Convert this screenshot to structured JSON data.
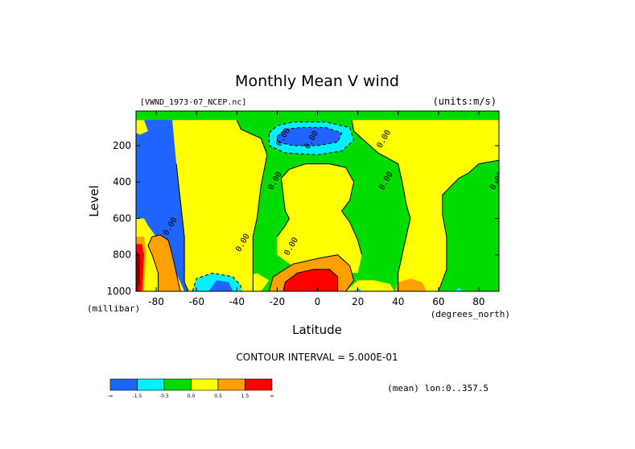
{
  "chart_data": {
    "type": "heatmap",
    "title": "Monthly Mean V wind",
    "dataset_label": "[VWND_1973-07_NCEP.nc]",
    "units_label": "(units:m/s)",
    "xlabel": "Latitude",
    "xunit": "(degrees_north)",
    "ylabel": "Level",
    "yunit": "(millibar)",
    "xlim": [
      -90,
      90
    ],
    "ylim": [
      1000,
      10
    ],
    "x_ticks": [
      "-80",
      "-60",
      "-40",
      "-20",
      "0",
      "20",
      "40",
      "60",
      "80"
    ],
    "x_tick_values": [
      -80,
      -60,
      -40,
      -20,
      0,
      20,
      40,
      60,
      80
    ],
    "y_ticks": [
      "200",
      "400",
      "600",
      "800",
      "1000"
    ],
    "y_tick_values": [
      200,
      400,
      600,
      800,
      1000
    ],
    "contour_labels": [
      "0.00",
      "0.00",
      "0.00",
      "0.00",
      "0.00",
      "0.00",
      "0.00",
      "0.00",
      "0.00"
    ],
    "contour_interval_text": "CONTOUR INTERVAL = 5.000E-01",
    "mean_text": "(mean) lon:0..357.5",
    "colorbar": {
      "colors": [
        "#1f64ff",
        "#00f0ff",
        "#00dc00",
        "#ffff00",
        "#ffa000",
        "#ff0000"
      ],
      "labels": [
        "-∞",
        "-1.5",
        "-0.5",
        "0.0",
        "0.5",
        "1.5",
        "∞"
      ]
    },
    "regions": [
      {
        "level": 0,
        "points": [
          [
            -40,
            1000
          ],
          [
            -42,
            650
          ],
          [
            -43,
            500
          ],
          [
            -40,
            350
          ],
          [
            -42,
            200
          ],
          [
            -48,
            120
          ],
          [
            -55,
            70
          ],
          [
            -60,
            60
          ],
          [
            -90,
            60
          ],
          [
            -90,
            1000
          ]
        ]
      },
      {
        "level": 3,
        "points": [
          [
            -64,
            1000
          ],
          [
            -66,
            950
          ],
          [
            -66,
            700
          ],
          [
            -68,
            500
          ],
          [
            -70,
            300
          ],
          [
            -72,
            60
          ],
          [
            -40,
            60
          ],
          [
            -38,
            110
          ],
          [
            -28,
            160
          ],
          [
            -25,
            250
          ],
          [
            -28,
            420
          ],
          [
            -30,
            600
          ],
          [
            -32,
            700
          ],
          [
            -32,
            1000
          ]
        ]
      },
      {
        "level": 3,
        "points": [
          [
            -20,
            700
          ],
          [
            -16,
            640
          ],
          [
            -14,
            600
          ],
          [
            -16,
            560
          ],
          [
            -18,
            380
          ],
          [
            -14,
            330
          ],
          [
            -6,
            300
          ],
          [
            6,
            300
          ],
          [
            14,
            320
          ],
          [
            18,
            400
          ],
          [
            16,
            500
          ],
          [
            12,
            560
          ],
          [
            16,
            620
          ],
          [
            20,
            720
          ],
          [
            22,
            800
          ],
          [
            20,
            900
          ],
          [
            -10,
            880
          ],
          [
            -20,
            800
          ]
        ]
      },
      {
        "level": 3,
        "points": [
          [
            17,
            60
          ],
          [
            18,
            120
          ],
          [
            24,
            180
          ],
          [
            30,
            240
          ],
          [
            40,
            300
          ],
          [
            42,
            400
          ],
          [
            44,
            520
          ],
          [
            46,
            600
          ],
          [
            44,
            700
          ],
          [
            40,
            900
          ],
          [
            40,
            1000
          ],
          [
            60,
            1000
          ],
          [
            64,
            880
          ],
          [
            64,
            700
          ],
          [
            62,
            580
          ],
          [
            62,
            470
          ],
          [
            70,
            380
          ],
          [
            75,
            350
          ],
          [
            80,
            300
          ],
          [
            90,
            280
          ],
          [
            90,
            60
          ]
        ]
      },
      {
        "level": 3,
        "points": [
          [
            -90,
            600
          ],
          [
            -86,
            600
          ],
          [
            -84,
            640
          ],
          [
            -80,
            700
          ],
          [
            -78,
            750
          ],
          [
            -74,
            820
          ],
          [
            -70,
            900
          ],
          [
            -66,
            1000
          ],
          [
            -90,
            1000
          ]
        ]
      },
      {
        "level": 3,
        "points": [
          [
            -36,
            1000
          ],
          [
            -38,
            950
          ],
          [
            -36,
            920
          ],
          [
            -30,
            900
          ],
          [
            -24,
            940
          ],
          [
            -28,
            1000
          ]
        ]
      },
      {
        "level": 3,
        "points": [
          [
            14,
            1000
          ],
          [
            20,
            940
          ],
          [
            28,
            940
          ],
          [
            36,
            960
          ],
          [
            38,
            1000
          ]
        ]
      },
      {
        "level": 3,
        "points": [
          [
            -90,
            60
          ],
          [
            -86,
            60
          ],
          [
            -84,
            120
          ],
          [
            -88,
            140
          ],
          [
            -90,
            130
          ]
        ]
      },
      {
        "level": 4,
        "points": [
          [
            -79,
            1000
          ],
          [
            -79,
            900
          ],
          [
            -82,
            800
          ],
          [
            -84,
            750
          ],
          [
            -82,
            700
          ],
          [
            -78,
            690
          ],
          [
            -74,
            720
          ],
          [
            -72,
            800
          ],
          [
            -70,
            900
          ],
          [
            -68,
            1000
          ]
        ]
      },
      {
        "level": 4,
        "points": [
          [
            -24,
            1000
          ],
          [
            -22,
            920
          ],
          [
            -12,
            850
          ],
          [
            0,
            820
          ],
          [
            10,
            800
          ],
          [
            16,
            860
          ],
          [
            18,
            940
          ],
          [
            14,
            1000
          ]
        ]
      },
      {
        "level": 4,
        "points": [
          [
            38,
            1000
          ],
          [
            40,
            950
          ],
          [
            46,
            930
          ],
          [
            52,
            950
          ],
          [
            54,
            1000
          ]
        ]
      },
      {
        "level": 4,
        "points": [
          [
            -90,
            700
          ],
          [
            -86,
            700
          ],
          [
            -85,
            780
          ],
          [
            -86,
            1000
          ],
          [
            -90,
            1000
          ]
        ]
      },
      {
        "level": 5,
        "points": [
          [
            -17,
            1000
          ],
          [
            -16,
            950
          ],
          [
            -10,
            900
          ],
          [
            -2,
            880
          ],
          [
            6,
            880
          ],
          [
            10,
            920
          ],
          [
            10,
            1000
          ]
        ]
      },
      {
        "level": 5,
        "points": [
          [
            -90,
            740
          ],
          [
            -87,
            740
          ],
          [
            -86,
            800
          ],
          [
            -87,
            1000
          ],
          [
            -90,
            1000
          ]
        ]
      },
      {
        "level": 6,
        "points": [
          [
            -90,
            780
          ],
          [
            -88,
            800
          ],
          [
            -88,
            960
          ],
          [
            -90,
            1000
          ]
        ]
      },
      {
        "level": 1,
        "points": [
          [
            -62,
            1000
          ],
          [
            -60,
            930
          ],
          [
            -52,
            900
          ],
          [
            -42,
            920
          ],
          [
            -38,
            970
          ],
          [
            -38,
            1000
          ]
        ]
      },
      {
        "level": 1,
        "points": [
          [
            18,
            1000
          ],
          [
            20,
            980
          ],
          [
            22,
            1000
          ]
        ]
      },
      {
        "level": 1,
        "points": [
          [
            68,
            1000
          ],
          [
            70,
            980
          ],
          [
            72,
            1000
          ]
        ]
      },
      {
        "level": 1,
        "points": [
          [
            -24,
            130
          ],
          [
            -20,
            90
          ],
          [
            -12,
            70
          ],
          [
            4,
            70
          ],
          [
            16,
            100
          ],
          [
            18,
            170
          ],
          [
            12,
            230
          ],
          [
            0,
            250
          ],
          [
            -16,
            240
          ],
          [
            -24,
            200
          ]
        ]
      },
      {
        "level": 0,
        "points": [
          [
            -20,
            150
          ],
          [
            -16,
            110
          ],
          [
            -8,
            100
          ],
          [
            4,
            100
          ],
          [
            12,
            130
          ],
          [
            10,
            180
          ],
          [
            0,
            200
          ],
          [
            -12,
            200
          ],
          [
            -20,
            180
          ]
        ]
      },
      {
        "level": 0,
        "points": [
          [
            -54,
            1000
          ],
          [
            -50,
            940
          ],
          [
            -44,
            950
          ],
          [
            -42,
            1000
          ]
        ]
      }
    ],
    "contours": [
      {
        "dashed": false,
        "points": [
          [
            -70,
            300
          ],
          [
            -68,
            500
          ],
          [
            -66,
            700
          ],
          [
            -66,
            950
          ],
          [
            -64,
            1000
          ]
        ]
      },
      {
        "dashed": false,
        "points": [
          [
            -40,
            60
          ],
          [
            -38,
            110
          ],
          [
            -28,
            160
          ],
          [
            -25,
            250
          ],
          [
            -28,
            420
          ],
          [
            -30,
            600
          ],
          [
            -32,
            700
          ],
          [
            -32,
            1000
          ]
        ]
      },
      {
        "dashed": false,
        "points": [
          [
            -20,
            700
          ],
          [
            -16,
            640
          ],
          [
            -14,
            600
          ],
          [
            -16,
            560
          ],
          [
            -18,
            380
          ],
          [
            -14,
            330
          ],
          [
            -6,
            300
          ],
          [
            6,
            300
          ],
          [
            14,
            320
          ],
          [
            18,
            400
          ],
          [
            16,
            500
          ],
          [
            12,
            560
          ],
          [
            16,
            620
          ],
          [
            20,
            720
          ],
          [
            22,
            800
          ]
        ]
      },
      {
        "dashed": false,
        "points": [
          [
            17,
            60
          ],
          [
            18,
            120
          ],
          [
            24,
            180
          ],
          [
            30,
            240
          ],
          [
            40,
            300
          ],
          [
            42,
            400
          ],
          [
            44,
            520
          ],
          [
            46,
            600
          ],
          [
            44,
            700
          ],
          [
            40,
            900
          ],
          [
            40,
            1000
          ]
        ]
      },
      {
        "dashed": false,
        "points": [
          [
            60,
            1000
          ],
          [
            64,
            880
          ],
          [
            64,
            700
          ],
          [
            62,
            580
          ],
          [
            62,
            470
          ],
          [
            70,
            380
          ],
          [
            75,
            350
          ],
          [
            80,
            300
          ],
          [
            90,
            280
          ]
        ]
      },
      {
        "dashed": false,
        "points": [
          [
            -24,
            1000
          ],
          [
            -22,
            920
          ],
          [
            -12,
            850
          ],
          [
            0,
            820
          ],
          [
            10,
            800
          ],
          [
            16,
            860
          ],
          [
            18,
            940
          ],
          [
            14,
            1000
          ]
        ]
      },
      {
        "dashed": false,
        "points": [
          [
            -17,
            1000
          ],
          [
            -16,
            950
          ],
          [
            -10,
            900
          ],
          [
            -2,
            880
          ],
          [
            6,
            880
          ],
          [
            10,
            920
          ],
          [
            10,
            1000
          ]
        ]
      },
      {
        "dashed": false,
        "points": [
          [
            -79,
            1000
          ],
          [
            -79,
            900
          ],
          [
            -82,
            800
          ],
          [
            -84,
            750
          ],
          [
            -82,
            700
          ],
          [
            -78,
            690
          ],
          [
            -74,
            720
          ],
          [
            -72,
            800
          ],
          [
            -70,
            900
          ],
          [
            -68,
            1000
          ]
        ]
      },
      {
        "dashed": true,
        "points": [
          [
            -24,
            130
          ],
          [
            -20,
            90
          ],
          [
            -12,
            70
          ],
          [
            4,
            70
          ],
          [
            16,
            100
          ],
          [
            18,
            170
          ],
          [
            12,
            230
          ],
          [
            0,
            250
          ],
          [
            -16,
            240
          ],
          [
            -24,
            200
          ],
          [
            -24,
            130
          ]
        ]
      },
      {
        "dashed": true,
        "points": [
          [
            -20,
            150
          ],
          [
            -16,
            110
          ],
          [
            -8,
            100
          ],
          [
            4,
            100
          ],
          [
            12,
            130
          ],
          [
            10,
            180
          ],
          [
            0,
            200
          ],
          [
            -12,
            200
          ],
          [
            -20,
            180
          ],
          [
            -20,
            150
          ]
        ]
      },
      {
        "dashed": true,
        "points": [
          [
            -62,
            1000
          ],
          [
            -60,
            930
          ],
          [
            -52,
            900
          ],
          [
            -42,
            920
          ],
          [
            -38,
            970
          ],
          [
            -38,
            1000
          ]
        ]
      }
    ],
    "contour_label_positions": [
      [
        -72,
        650
      ],
      [
        -36,
        740
      ],
      [
        -20,
        400
      ],
      [
        -12,
        760
      ],
      [
        -2,
        175
      ],
      [
        34,
        170
      ],
      [
        35,
        400
      ],
      [
        90,
        400
      ],
      [
        -16,
        160
      ]
    ]
  }
}
